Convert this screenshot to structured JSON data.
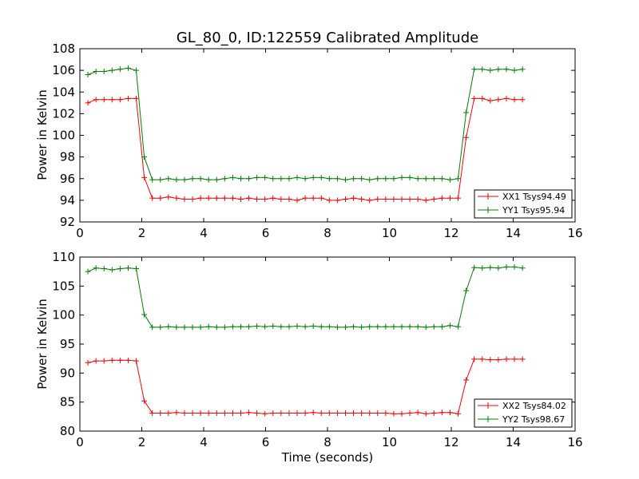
{
  "chart_data": [
    {
      "type": "line",
      "title": "GL_80_0, ID:122559 Calibrated Amplitude",
      "xlabel": "",
      "ylabel": "Power in Kelvin",
      "xlim": [
        0,
        16
      ],
      "ylim": [
        92,
        108
      ],
      "xticks": [
        0,
        2,
        4,
        6,
        8,
        10,
        12,
        14,
        16
      ],
      "yticks": [
        92,
        94,
        96,
        98,
        100,
        102,
        104,
        106,
        108
      ],
      "grid": false,
      "legend": "lower-right",
      "series": [
        {
          "name": "XX1 Tsys94.49",
          "color": "#ff0000",
          "x": [
            0.26,
            0.52,
            0.78,
            1.04,
            1.3,
            1.56,
            1.82,
            2.08,
            2.34,
            2.6,
            2.86,
            3.12,
            3.38,
            3.64,
            3.9,
            4.16,
            4.42,
            4.68,
            4.94,
            5.2,
            5.46,
            5.72,
            5.98,
            6.24,
            6.5,
            6.76,
            7.02,
            7.28,
            7.54,
            7.8,
            8.06,
            8.32,
            8.58,
            8.84,
            9.1,
            9.36,
            9.62,
            9.88,
            10.14,
            10.4,
            10.66,
            10.92,
            11.18,
            11.44,
            11.7,
            11.96,
            12.22,
            12.48,
            12.74,
            13.0,
            13.26,
            13.52,
            13.78,
            14.04,
            14.3
          ],
          "y": [
            103.0,
            103.3,
            103.3,
            103.3,
            103.3,
            103.4,
            103.4,
            96.1,
            94.2,
            94.2,
            94.3,
            94.2,
            94.1,
            94.1,
            94.2,
            94.2,
            94.2,
            94.2,
            94.2,
            94.1,
            94.2,
            94.1,
            94.1,
            94.2,
            94.1,
            94.1,
            94.0,
            94.2,
            94.2,
            94.2,
            94.0,
            94.0,
            94.1,
            94.2,
            94.1,
            94.0,
            94.1,
            94.1,
            94.1,
            94.1,
            94.1,
            94.1,
            94.0,
            94.1,
            94.2,
            94.2,
            94.2,
            99.8,
            103.4,
            103.4,
            103.2,
            103.3,
            103.4,
            103.3,
            103.3
          ]
        },
        {
          "name": "YY1 Tsys95.94",
          "color": "#008000",
          "x": [
            0.26,
            0.52,
            0.78,
            1.04,
            1.3,
            1.56,
            1.82,
            2.08,
            2.34,
            2.6,
            2.86,
            3.12,
            3.38,
            3.64,
            3.9,
            4.16,
            4.42,
            4.68,
            4.94,
            5.2,
            5.46,
            5.72,
            5.98,
            6.24,
            6.5,
            6.76,
            7.02,
            7.28,
            7.54,
            7.8,
            8.06,
            8.32,
            8.58,
            8.84,
            9.1,
            9.36,
            9.62,
            9.88,
            10.14,
            10.4,
            10.66,
            10.92,
            11.18,
            11.44,
            11.7,
            11.96,
            12.22,
            12.48,
            12.74,
            13.0,
            13.26,
            13.52,
            13.78,
            14.04,
            14.3
          ],
          "y": [
            105.6,
            105.9,
            105.9,
            106.0,
            106.1,
            106.2,
            106.0,
            98.0,
            95.9,
            95.9,
            96.0,
            95.9,
            95.9,
            96.0,
            96.0,
            95.9,
            95.9,
            96.0,
            96.1,
            96.0,
            96.0,
            96.1,
            96.1,
            96.0,
            96.0,
            96.0,
            96.1,
            96.0,
            96.1,
            96.1,
            96.0,
            96.0,
            95.9,
            96.0,
            96.0,
            95.9,
            96.0,
            96.0,
            96.0,
            96.1,
            96.1,
            96.0,
            96.0,
            96.0,
            96.0,
            95.9,
            96.0,
            102.1,
            106.1,
            106.1,
            106.0,
            106.1,
            106.1,
            106.0,
            106.1
          ]
        }
      ]
    },
    {
      "type": "line",
      "title": "",
      "xlabel": "Time (seconds)",
      "ylabel": "Power in Kelvin",
      "xlim": [
        0,
        16
      ],
      "ylim": [
        80,
        110
      ],
      "xticks": [
        0,
        2,
        4,
        6,
        8,
        10,
        12,
        14,
        16
      ],
      "yticks": [
        80,
        85,
        90,
        95,
        100,
        105,
        110
      ],
      "grid": false,
      "legend": "lower-right",
      "series": [
        {
          "name": "XX2 Tsys84.02",
          "color": "#ff0000",
          "x": [
            0.26,
            0.52,
            0.78,
            1.04,
            1.3,
            1.56,
            1.82,
            2.08,
            2.34,
            2.6,
            2.86,
            3.12,
            3.38,
            3.64,
            3.9,
            4.16,
            4.42,
            4.68,
            4.94,
            5.2,
            5.46,
            5.72,
            5.98,
            6.24,
            6.5,
            6.76,
            7.02,
            7.28,
            7.54,
            7.8,
            8.06,
            8.32,
            8.58,
            8.84,
            9.1,
            9.36,
            9.62,
            9.88,
            10.14,
            10.4,
            10.66,
            10.92,
            11.18,
            11.44,
            11.7,
            11.96,
            12.22,
            12.48,
            12.74,
            13.0,
            13.26,
            13.52,
            13.78,
            14.04,
            14.3
          ],
          "y": [
            91.8,
            92.1,
            92.1,
            92.2,
            92.2,
            92.2,
            92.1,
            85.2,
            83.1,
            83.1,
            83.1,
            83.2,
            83.1,
            83.1,
            83.1,
            83.1,
            83.1,
            83.1,
            83.1,
            83.1,
            83.2,
            83.1,
            83.0,
            83.1,
            83.1,
            83.1,
            83.1,
            83.1,
            83.2,
            83.1,
            83.1,
            83.1,
            83.1,
            83.1,
            83.1,
            83.1,
            83.1,
            83.1,
            83.0,
            83.0,
            83.1,
            83.2,
            83.0,
            83.1,
            83.2,
            83.2,
            83.0,
            88.8,
            92.4,
            92.4,
            92.3,
            92.3,
            92.4,
            92.4,
            92.4
          ]
        },
        {
          "name": "YY2 Tsys98.67",
          "color": "#008000",
          "x": [
            0.26,
            0.52,
            0.78,
            1.04,
            1.3,
            1.56,
            1.82,
            2.08,
            2.34,
            2.6,
            2.86,
            3.12,
            3.38,
            3.64,
            3.9,
            4.16,
            4.42,
            4.68,
            4.94,
            5.2,
            5.46,
            5.72,
            5.98,
            6.24,
            6.5,
            6.76,
            7.02,
            7.28,
            7.54,
            7.8,
            8.06,
            8.32,
            8.58,
            8.84,
            9.1,
            9.36,
            9.62,
            9.88,
            10.14,
            10.4,
            10.66,
            10.92,
            11.18,
            11.44,
            11.7,
            11.96,
            12.22,
            12.48,
            12.74,
            13.0,
            13.26,
            13.52,
            13.78,
            14.04,
            14.3
          ],
          "y": [
            107.5,
            108.1,
            108.0,
            107.8,
            108.0,
            108.1,
            108.0,
            100.1,
            97.9,
            97.9,
            98.0,
            97.9,
            97.9,
            97.9,
            97.9,
            98.0,
            97.9,
            97.9,
            98.0,
            98.0,
            98.0,
            98.1,
            98.0,
            98.1,
            98.0,
            98.0,
            98.1,
            98.0,
            98.1,
            98.0,
            98.0,
            97.9,
            97.9,
            98.0,
            97.9,
            98.0,
            98.0,
            98.0,
            98.0,
            98.0,
            98.0,
            98.0,
            97.9,
            98.0,
            98.0,
            98.2,
            98.0,
            104.2,
            108.2,
            108.1,
            108.2,
            108.1,
            108.3,
            108.3,
            108.1
          ]
        }
      ]
    }
  ]
}
